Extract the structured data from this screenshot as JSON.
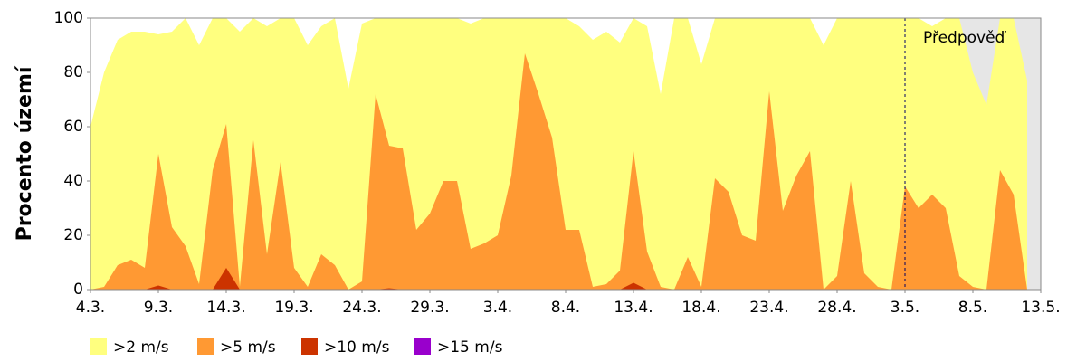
{
  "chart_data": {
    "type": "area",
    "y_label": "Procento území",
    "annotation": "Předpověď",
    "categories": [
      "4.3.",
      null,
      null,
      null,
      null,
      "9.3.",
      null,
      null,
      null,
      null,
      "14.3.",
      null,
      null,
      null,
      null,
      "19.3.",
      null,
      null,
      null,
      null,
      "24.3.",
      null,
      null,
      null,
      null,
      "29.3.",
      null,
      null,
      null,
      null,
      "3.4.",
      null,
      null,
      null,
      null,
      "8.4.",
      null,
      null,
      null,
      null,
      "13.4.",
      null,
      null,
      null,
      null,
      "18.4.",
      null,
      null,
      null,
      null,
      "23.4.",
      null,
      null,
      null,
      null,
      "28.4.",
      null,
      null,
      null,
      null,
      "3.5.",
      null,
      null,
      null,
      null,
      "8.5.",
      null,
      null,
      null,
      null,
      "13.5."
    ],
    "series": [
      {
        "name": ">2 m/s",
        "color": "#ffff7f",
        "values": [
          60,
          80,
          92,
          95,
          95,
          94,
          95,
          100,
          90,
          100,
          100,
          95,
          100,
          97,
          100,
          100,
          90,
          97,
          100,
          74,
          98,
          100,
          100,
          100,
          100,
          100,
          100,
          100,
          98,
          100,
          100,
          100,
          100,
          100,
          100,
          100,
          97,
          92,
          95,
          91,
          100,
          97,
          72,
          100,
          100,
          83,
          100,
          100,
          100,
          100,
          100,
          100,
          100,
          100,
          90,
          100,
          100,
          100,
          100,
          100,
          100,
          100,
          97,
          100,
          100,
          80,
          68,
          100,
          100,
          77,
          null
        ]
      },
      {
        "name": ">5 m/s",
        "color": "#ff9933",
        "values": [
          0,
          1,
          9,
          11,
          8,
          50,
          23,
          16,
          2,
          44,
          61,
          1,
          55,
          13,
          47,
          8,
          1,
          13,
          9,
          0,
          3,
          72,
          53,
          52,
          22,
          28,
          40,
          40,
          15,
          17,
          20,
          42,
          87,
          72,
          56,
          22,
          22,
          1,
          2,
          7,
          51,
          14,
          1,
          0,
          12,
          1,
          41,
          36,
          20,
          18,
          73,
          29,
          42,
          51,
          0,
          5,
          40,
          6,
          1,
          0,
          38,
          30,
          35,
          30,
          5,
          1,
          0,
          44,
          35,
          0,
          null
        ]
      },
      {
        "name": ">10 m/s",
        "color": "#cc3300",
        "values": [
          0,
          0,
          0,
          0,
          0,
          1.5,
          0,
          0,
          0,
          0,
          8,
          0,
          0,
          0,
          0,
          0,
          0,
          0,
          0,
          0,
          0,
          0,
          0.5,
          0,
          0,
          0,
          0,
          0,
          0,
          0,
          0,
          0,
          0,
          0,
          0,
          0,
          0,
          0,
          0,
          0,
          2.5,
          0,
          0,
          0,
          0,
          0,
          0,
          0,
          0,
          0,
          0,
          0,
          0,
          0,
          0,
          0,
          0,
          0,
          0,
          0,
          0,
          0,
          0,
          0,
          0,
          0,
          0,
          0,
          0,
          0,
          null
        ]
      },
      {
        "name": ">15 m/s",
        "color": "#9900cc",
        "values": [
          0,
          0,
          0,
          0,
          0,
          0,
          0,
          0,
          0,
          0,
          0,
          0,
          0,
          0,
          0,
          0,
          0,
          0,
          0,
          0,
          0,
          0,
          0,
          0,
          0,
          0,
          0,
          0,
          0,
          0,
          0,
          0,
          0,
          0,
          0,
          0,
          0,
          0,
          0,
          0,
          0,
          0,
          0,
          0,
          0,
          0,
          0,
          0,
          0,
          0,
          0,
          0,
          0,
          0,
          0,
          0,
          0,
          0,
          0,
          0,
          0,
          0,
          0,
          0,
          0,
          0,
          0,
          0,
          0,
          0,
          null
        ]
      }
    ],
    "ylim": [
      0,
      100
    ],
    "yticks": [
      0,
      20,
      40,
      60,
      80,
      100
    ]
  }
}
